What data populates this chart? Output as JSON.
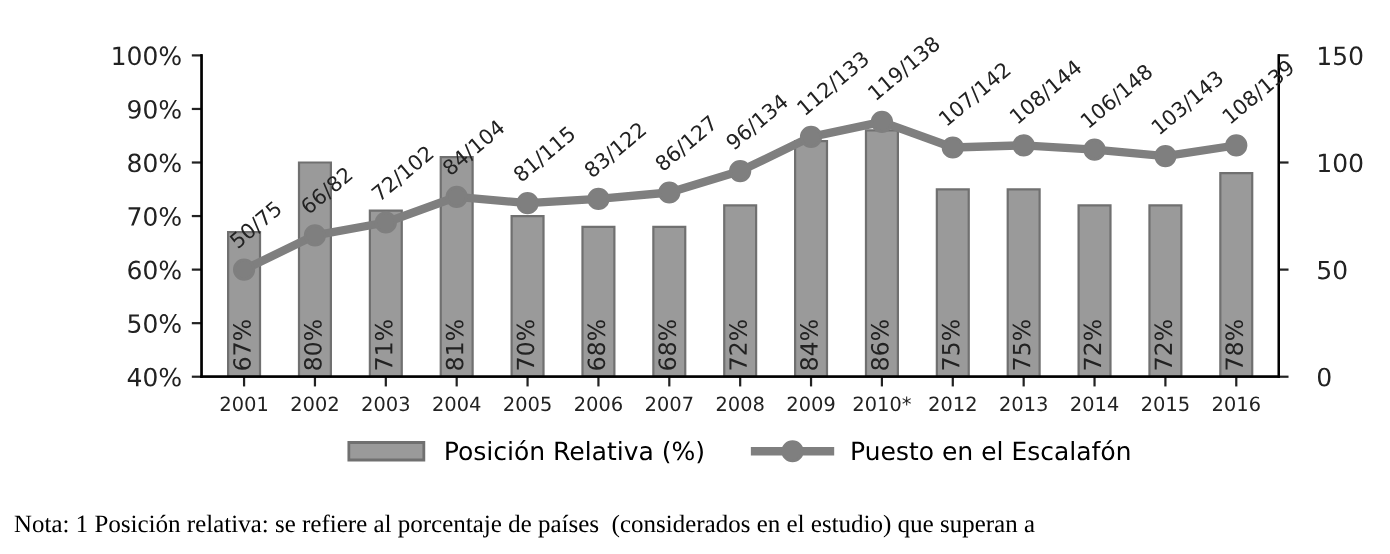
{
  "chart_data": {
    "type": "bar",
    "categories": [
      "2001",
      "2002",
      "2003",
      "2004",
      "2005",
      "2006",
      "2007",
      "2008",
      "2009",
      "2010*",
      "2012",
      "2013",
      "2014",
      "2015",
      "2016"
    ],
    "series": [
      {
        "name": "Posición Relativa (%)",
        "color": "#9a9a9a",
        "values": [
          67,
          80,
          71,
          81,
          70,
          68,
          68,
          72,
          84,
          86,
          75,
          75,
          72,
          72,
          78
        ],
        "value_labels": [
          "67%",
          "80%",
          "71%",
          "81%",
          "70%",
          "68%",
          "68%",
          "72%",
          "84%",
          "86%",
          "75%",
          "75%",
          "72%",
          "72%",
          "78%"
        ]
      },
      {
        "name": "Puesto en el Escalafón",
        "type": "line",
        "axis": "y2",
        "color": "#7f7f7f",
        "marker": "circle",
        "values": [
          50,
          66,
          72,
          84,
          81,
          83,
          86,
          96,
          112,
          119,
          107,
          108,
          106,
          103,
          108
        ],
        "value_labels": [
          "50/75",
          "66/82",
          "72/102",
          "84/104",
          "81/115",
          "83/122",
          "86/127",
          "96/134",
          "112/133",
          "119/138",
          "107/142",
          "108/144",
          "106/148",
          "103/143",
          "108/139"
        ]
      }
    ],
    "ylim": [
      40,
      100
    ],
    "yticks": [
      {
        "value": 40,
        "label": "40%"
      },
      {
        "value": 50,
        "label": "50%"
      },
      {
        "value": 60,
        "label": "60%"
      },
      {
        "value": 70,
        "label": "70%"
      },
      {
        "value": 80,
        "label": "80%"
      },
      {
        "value": 90,
        "label": "90%"
      },
      {
        "value": 100,
        "label": "100%"
      }
    ],
    "y2lim": [
      0,
      150
    ],
    "y2ticks": [
      0,
      50,
      100,
      150
    ],
    "grid": false,
    "legend": "bottom",
    "annotations": [
      "Nota: 1 Posición relativa: se refiere al porcentaje de países  (considerados en el estudio) que superan a"
    ]
  }
}
